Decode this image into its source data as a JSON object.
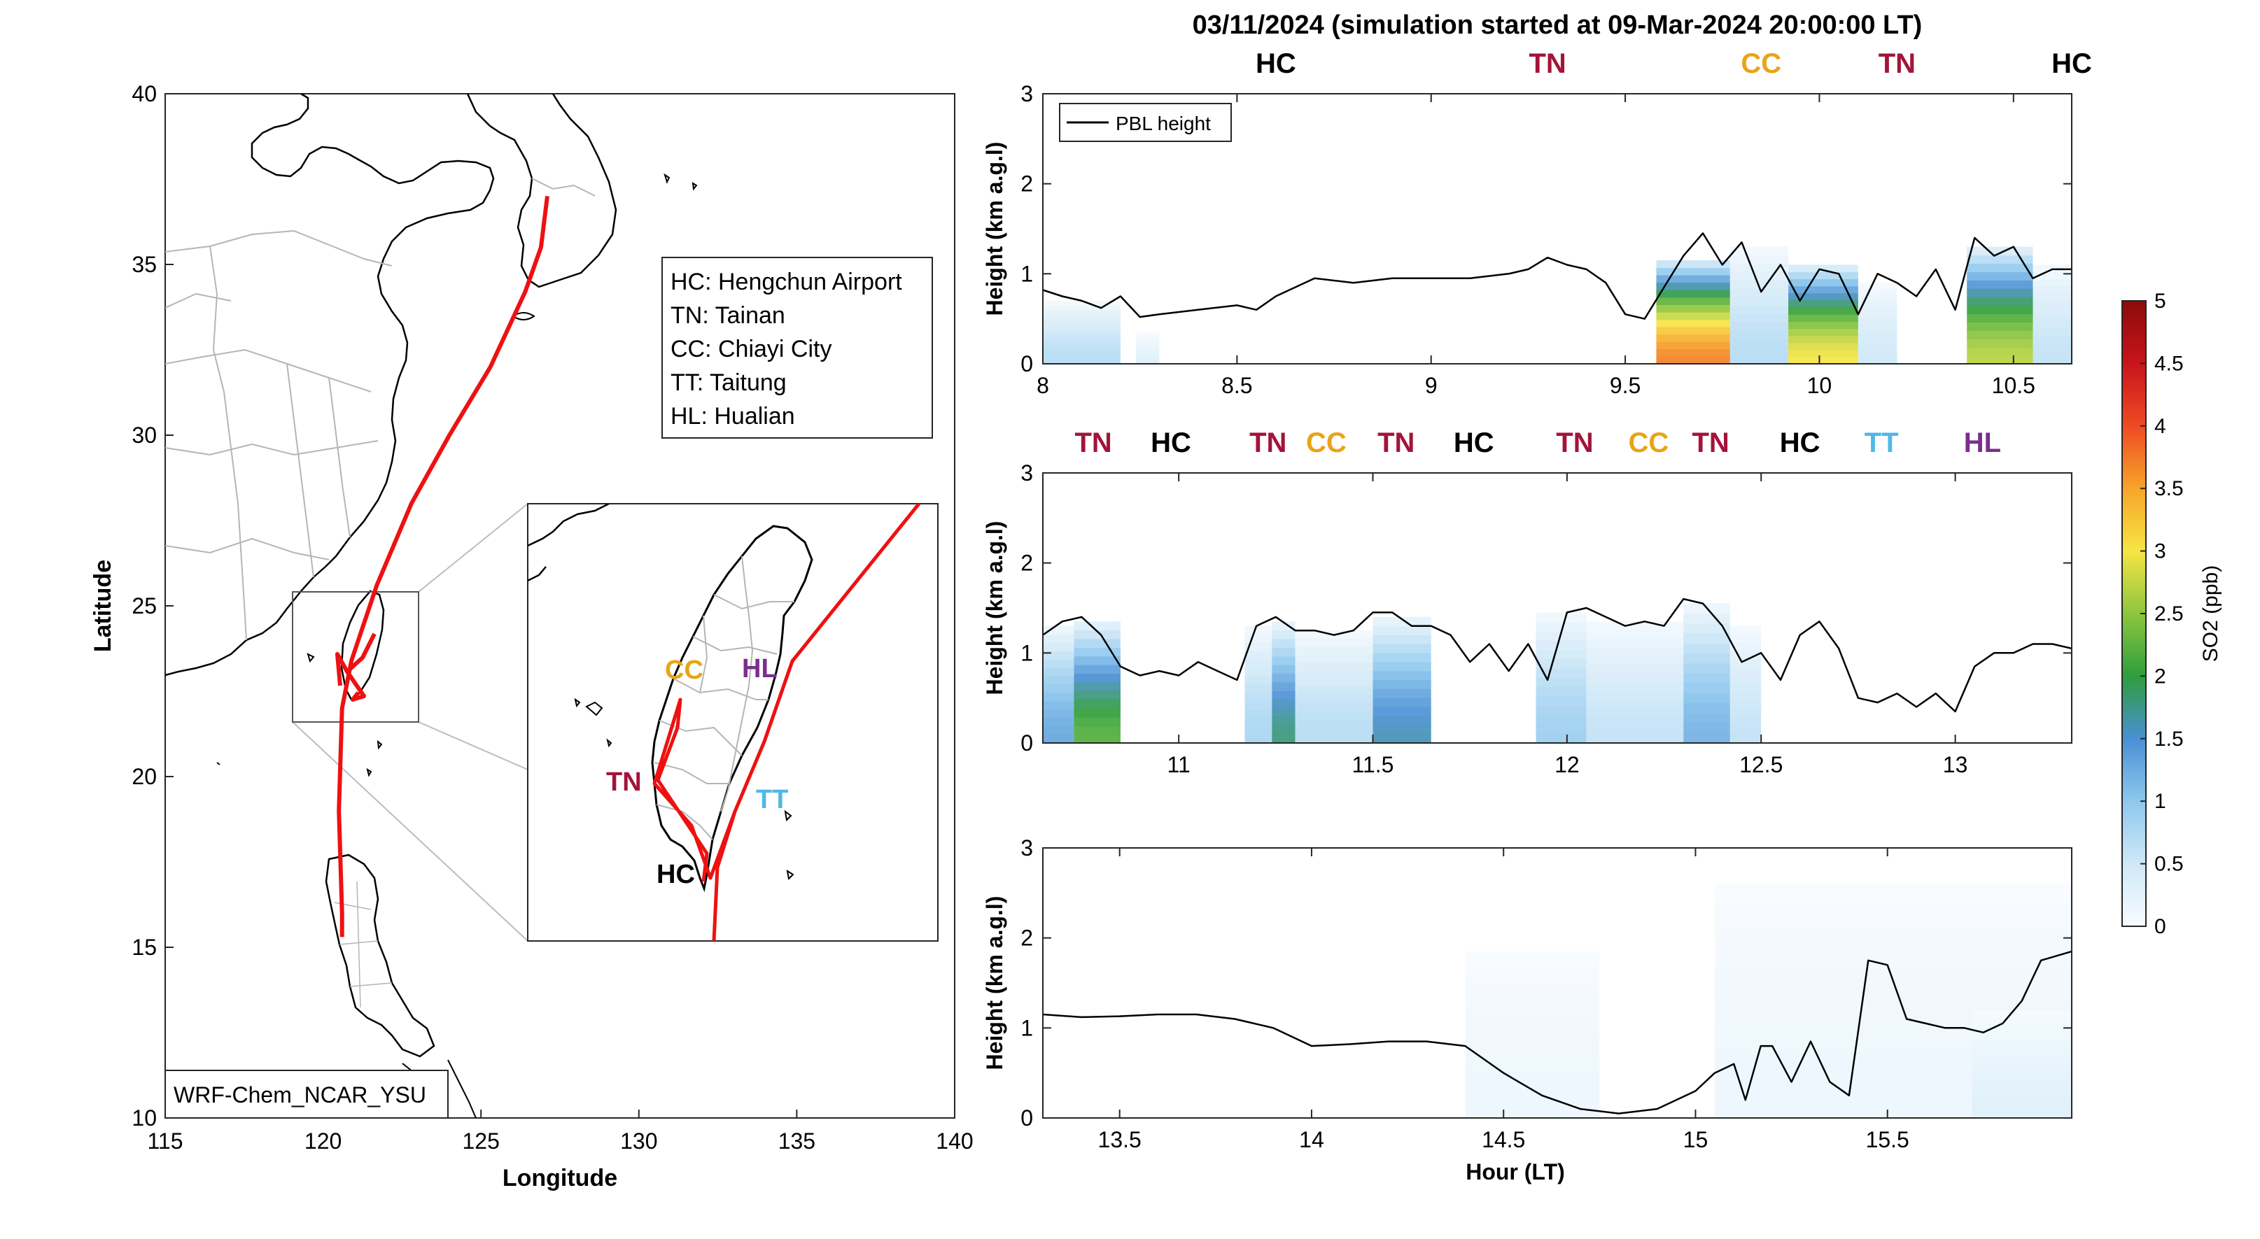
{
  "title": "03/11/2024 (simulation started at 09-Mar-2024 20:00:00 LT)",
  "colors": {
    "HC": "#000000",
    "TN": "#a3143a",
    "CC": "#e8a418",
    "TT": "#4fb8e8",
    "HL": "#7a2f8e",
    "track": "#ee1111",
    "coast": "#000000",
    "border": "#a8a8a8"
  },
  "map": {
    "xlabel": "Longitude",
    "ylabel": "Latitude",
    "xlim": [
      115,
      140
    ],
    "ylim": [
      10,
      40
    ],
    "xticks": [
      115,
      120,
      125,
      130,
      135,
      140
    ],
    "yticks": [
      10,
      15,
      20,
      25,
      30,
      35,
      40
    ],
    "legend": [
      {
        "code": "HC",
        "text": "HC: Hengchun Airport"
      },
      {
        "code": "TN",
        "text": "TN: Tainan"
      },
      {
        "code": "CC",
        "text": "CC: Chiayi City"
      },
      {
        "code": "TT",
        "text": "TT: Taitung"
      },
      {
        "code": "HL",
        "text": "HL: Hualian"
      }
    ],
    "model_label": "WRF-Chem_NCAR_YSU",
    "inset_labels": [
      "CC",
      "HL",
      "TN",
      "TT",
      "HC"
    ],
    "track_lonlat": [
      [
        127.1,
        37.0
      ],
      [
        126.9,
        35.5
      ],
      [
        126.4,
        34.2
      ],
      [
        125.3,
        32.0
      ],
      [
        124.0,
        30.0
      ],
      [
        122.8,
        28.0
      ],
      [
        121.7,
        25.6
      ],
      [
        120.9,
        23.4
      ],
      [
        120.6,
        22.0
      ],
      [
        120.5,
        19.0
      ],
      [
        120.6,
        16.0
      ],
      [
        120.6,
        15.3
      ]
    ]
  },
  "chart_data": [
    {
      "type": "line",
      "name": "panel-1",
      "xlabel": "",
      "ylabel": "Height (km a.g.l)",
      "xlim": [
        8.0,
        10.65
      ],
      "ylim": [
        0,
        3
      ],
      "xticks": [
        8,
        8.5,
        9,
        9.5,
        10,
        10.5
      ],
      "yticks": [
        0,
        1,
        2,
        3
      ],
      "legend": "PBL height",
      "legend_position": "top-left",
      "site_labels": [
        {
          "label": "HC",
          "x": 8.6
        },
        {
          "label": "TN",
          "x": 9.3
        },
        {
          "label": "CC",
          "x": 9.85
        },
        {
          "label": "TN",
          "x": 10.2
        },
        {
          "label": "HC",
          "x": 10.65
        },
        {
          "label": "TN",
          "x": 11.25
        },
        {
          "label": "CC",
          "x": 11.63
        }
      ],
      "x": [
        8.0,
        8.05,
        8.1,
        8.15,
        8.2,
        8.25,
        8.3,
        8.4,
        8.5,
        8.55,
        8.6,
        8.7,
        8.8,
        8.9,
        9.0,
        9.1,
        9.2,
        9.25,
        9.3,
        9.35,
        9.4,
        9.45,
        9.5,
        9.55,
        9.6,
        9.65,
        9.7,
        9.75,
        9.8,
        9.85,
        9.9,
        9.95,
        10.0,
        10.05,
        10.1,
        10.15,
        10.2,
        10.25,
        10.3,
        10.35,
        10.4,
        10.45,
        10.5,
        10.55,
        10.6,
        10.65
      ],
      "y": [
        0.82,
        0.75,
        0.7,
        0.62,
        0.75,
        0.52,
        0.55,
        0.6,
        0.65,
        0.6,
        0.75,
        0.95,
        0.9,
        0.95,
        0.95,
        0.95,
        1.0,
        1.05,
        1.18,
        1.1,
        1.05,
        0.9,
        0.55,
        0.5,
        0.85,
        1.2,
        1.45,
        1.1,
        1.35,
        0.8,
        1.1,
        0.7,
        1.05,
        1.0,
        0.55,
        1.0,
        0.9,
        0.75,
        1.05,
        0.6,
        1.4,
        1.2,
        1.3,
        0.95,
        1.05,
        1.05
      ],
      "so2_columns": [
        {
          "x0": 8.0,
          "x1": 8.2,
          "ztop": 0.7,
          "peak": 0.7
        },
        {
          "x0": 8.24,
          "x1": 8.3,
          "ztop": 0.35,
          "peak": 0.3
        },
        {
          "x0": 9.58,
          "x1": 9.77,
          "ztop": 1.15,
          "peak": 3.7
        },
        {
          "x0": 9.77,
          "x1": 9.92,
          "ztop": 1.3,
          "peak": 0.7
        },
        {
          "x0": 9.92,
          "x1": 10.1,
          "ztop": 1.1,
          "peak": 3.0
        },
        {
          "x0": 10.1,
          "x1": 10.2,
          "ztop": 0.9,
          "peak": 0.5
        },
        {
          "x0": 10.38,
          "x1": 10.55,
          "ztop": 1.3,
          "peak": 2.7
        },
        {
          "x0": 10.55,
          "x1": 10.65,
          "ztop": 1.1,
          "peak": 0.6
        }
      ]
    },
    {
      "type": "line",
      "name": "panel-2",
      "xlabel": "",
      "ylabel": "Height (km a.g.l)",
      "xlim": [
        10.65,
        13.3
      ],
      "ylim": [
        0,
        3
      ],
      "xticks": [
        11,
        11.5,
        12,
        12.5,
        13
      ],
      "yticks": [
        0,
        1,
        2,
        3
      ],
      "site_labels": [
        {
          "label": "TN",
          "x": 10.78
        },
        {
          "label": "HC",
          "x": 10.98
        },
        {
          "label": "TN",
          "x": 11.23
        },
        {
          "label": "CC",
          "x": 11.38
        },
        {
          "label": "TN",
          "x": 11.56
        },
        {
          "label": "HC",
          "x": 11.76
        },
        {
          "label": "TN",
          "x": 12.02
        },
        {
          "label": "CC",
          "x": 12.21
        },
        {
          "label": "TN",
          "x": 12.37
        },
        {
          "label": "HC",
          "x": 12.6
        },
        {
          "label": "TT",
          "x": 12.81
        },
        {
          "label": "HL",
          "x": 13.07
        }
      ],
      "x": [
        10.65,
        10.7,
        10.75,
        10.8,
        10.85,
        10.9,
        10.95,
        11.0,
        11.05,
        11.1,
        11.15,
        11.2,
        11.25,
        11.3,
        11.35,
        11.4,
        11.45,
        11.5,
        11.55,
        11.6,
        11.65,
        11.7,
        11.75,
        11.8,
        11.85,
        11.9,
        11.95,
        12.0,
        12.05,
        12.1,
        12.15,
        12.2,
        12.25,
        12.3,
        12.35,
        12.4,
        12.45,
        12.5,
        12.55,
        12.6,
        12.65,
        12.7,
        12.75,
        12.8,
        12.85,
        12.9,
        12.95,
        13.0,
        13.05,
        13.1,
        13.15,
        13.2,
        13.25,
        13.3
      ],
      "y": [
        1.2,
        1.35,
        1.4,
        1.2,
        0.85,
        0.75,
        0.8,
        0.75,
        0.9,
        0.8,
        0.7,
        1.3,
        1.4,
        1.25,
        1.25,
        1.2,
        1.25,
        1.45,
        1.45,
        1.3,
        1.3,
        1.2,
        0.9,
        1.1,
        0.8,
        1.1,
        0.7,
        1.45,
        1.5,
        1.4,
        1.3,
        1.35,
        1.3,
        1.6,
        1.55,
        1.3,
        0.9,
        1.0,
        0.7,
        1.2,
        1.35,
        1.05,
        0.5,
        0.45,
        0.55,
        0.4,
        0.55,
        0.35,
        0.85,
        1.0,
        1.0,
        1.1,
        1.1,
        1.05
      ],
      "so2_columns": [
        {
          "x0": 10.65,
          "x1": 10.73,
          "ztop": 1.3,
          "peak": 1.3
        },
        {
          "x0": 10.73,
          "x1": 10.85,
          "ztop": 1.35,
          "peak": 2.2
        },
        {
          "x0": 11.17,
          "x1": 11.24,
          "ztop": 1.3,
          "peak": 0.8
        },
        {
          "x0": 11.24,
          "x1": 11.3,
          "ztop": 1.35,
          "peak": 1.8
        },
        {
          "x0": 11.3,
          "x1": 11.5,
          "ztop": 1.25,
          "peak": 0.7
        },
        {
          "x0": 11.5,
          "x1": 11.65,
          "ztop": 1.4,
          "peak": 1.6
        },
        {
          "x0": 11.92,
          "x1": 12.05,
          "ztop": 1.45,
          "peak": 0.9
        },
        {
          "x0": 12.05,
          "x1": 12.3,
          "ztop": 1.35,
          "peak": 0.6
        },
        {
          "x0": 12.3,
          "x1": 12.42,
          "ztop": 1.55,
          "peak": 1.2
        },
        {
          "x0": 12.42,
          "x1": 12.5,
          "ztop": 1.3,
          "peak": 0.6
        }
      ]
    },
    {
      "type": "line",
      "name": "panel-3",
      "xlabel": "Hour (LT)",
      "ylabel": "Height (km a.g.l)",
      "xlim": [
        13.3,
        15.98
      ],
      "ylim": [
        0,
        3
      ],
      "xticks": [
        13.5,
        14,
        14.5,
        15,
        15.5
      ],
      "yticks": [
        0,
        1,
        2,
        3
      ],
      "x": [
        13.3,
        13.4,
        13.5,
        13.6,
        13.7,
        13.8,
        13.9,
        14.0,
        14.1,
        14.2,
        14.3,
        14.4,
        14.5,
        14.6,
        14.7,
        14.8,
        14.9,
        15.0,
        15.05,
        15.1,
        15.13,
        15.17,
        15.2,
        15.25,
        15.3,
        15.35,
        15.4,
        15.45,
        15.5,
        15.55,
        15.6,
        15.65,
        15.7,
        15.75,
        15.8,
        15.85,
        15.9,
        15.98
      ],
      "y": [
        1.15,
        1.12,
        1.13,
        1.15,
        1.15,
        1.1,
        1.0,
        0.8,
        0.82,
        0.85,
        0.85,
        0.8,
        0.5,
        0.25,
        0.1,
        0.05,
        0.1,
        0.3,
        0.5,
        0.6,
        0.2,
        0.8,
        0.8,
        0.4,
        0.85,
        0.4,
        0.25,
        1.75,
        1.7,
        1.1,
        1.05,
        1.0,
        1.0,
        0.95,
        1.05,
        1.3,
        1.75,
        1.85
      ],
      "so2_columns": [
        {
          "x0": 14.4,
          "x1": 14.75,
          "ztop": 1.85,
          "peak": 0.15
        },
        {
          "x0": 15.05,
          "x1": 15.98,
          "ztop": 2.6,
          "peak": 0.15
        },
        {
          "x0": 15.72,
          "x1": 15.98,
          "ztop": 1.2,
          "peak": 0.3
        }
      ]
    }
  ],
  "colorbar": {
    "label": "SO2 (ppb)",
    "min": 0,
    "max": 5,
    "ticks": [
      "0",
      "0.5",
      "1",
      "1.5",
      "2",
      "2.5",
      "3",
      "3.5",
      "4",
      "4.5",
      "5"
    ],
    "stops": [
      "#f9fcff",
      "#cfe8f7",
      "#8ec8ee",
      "#4a8fd4",
      "#2e9e3c",
      "#8dc63f",
      "#f6e544",
      "#f7a52a",
      "#ef4a24",
      "#c8151b",
      "#8b0b0b"
    ]
  }
}
